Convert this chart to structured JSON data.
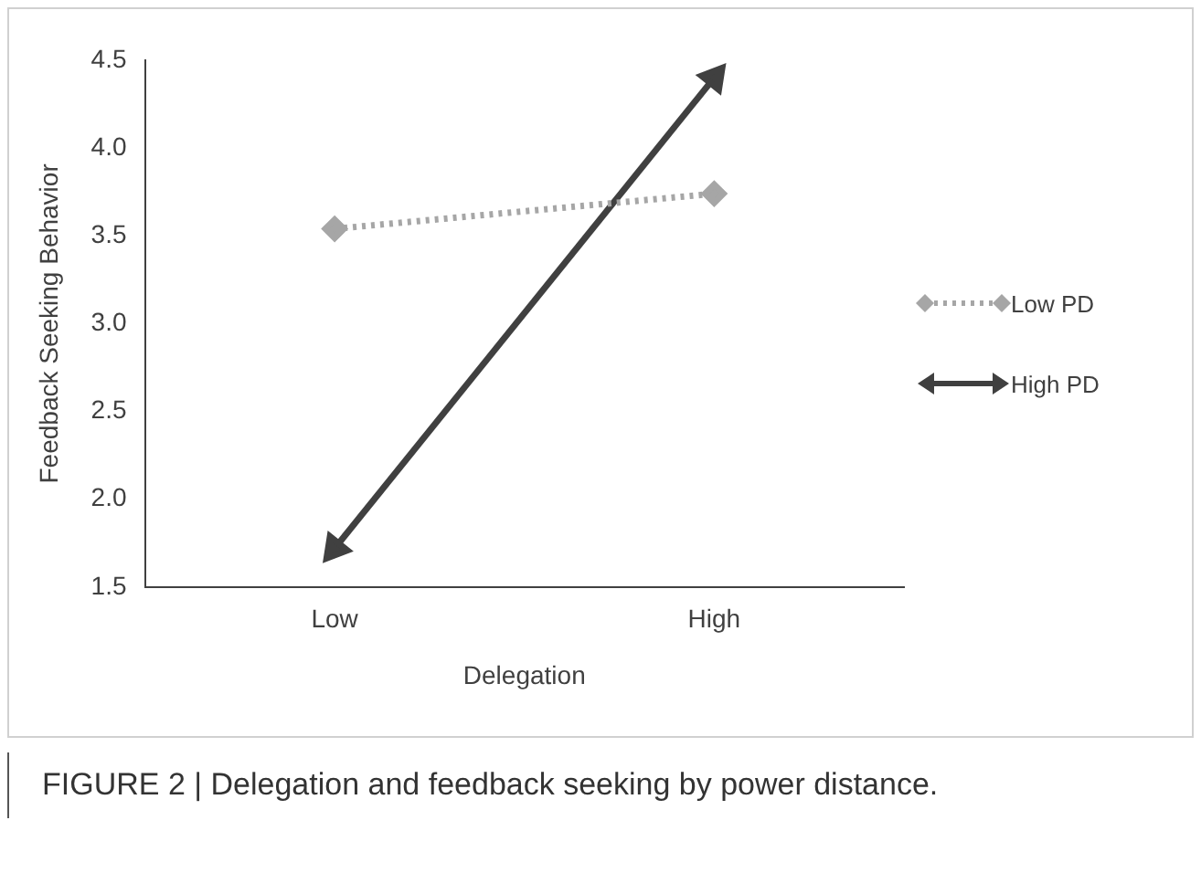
{
  "chart_data": {
    "type": "line",
    "xlabel": "Delegation",
    "ylabel": "Feedback Seeking Behavior",
    "categories": [
      "Low",
      "High"
    ],
    "series": [
      {
        "name": "Low PD",
        "color": "#a6a6a6",
        "values": [
          3.54,
          3.74
        ],
        "marker": "diamond",
        "line_style": "dotted"
      },
      {
        "name": "High PD",
        "color": "#404040",
        "values": [
          1.72,
          4.4
        ],
        "marker": "triangle",
        "line_style": "solid"
      }
    ],
    "ylim": [
      1.5,
      4.5
    ],
    "yticks": [
      {
        "value": 1.5,
        "label": "1.5"
      },
      {
        "value": 2,
        "label": "2.0"
      },
      {
        "value": 2.5,
        "label": "2.5"
      },
      {
        "value": 3,
        "label": "3.0"
      },
      {
        "value": 3.5,
        "label": "3.5"
      },
      {
        "value": 4,
        "label": "4.0"
      },
      {
        "value": 4.5,
        "label": "4.5"
      }
    ],
    "grid": false,
    "legend": "right",
    "annotations": [
      "FIGURE 2 | Delegation and feedback seeking by power distance."
    ]
  }
}
